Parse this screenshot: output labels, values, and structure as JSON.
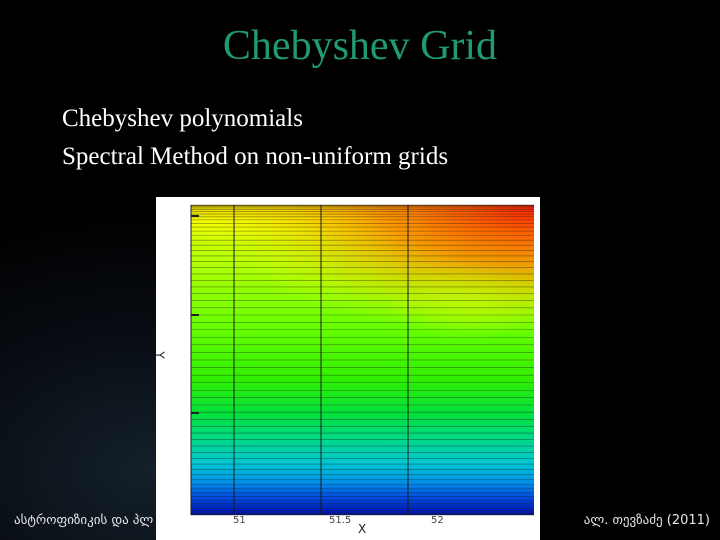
{
  "slide": {
    "title": "Chebyshev Grid",
    "bullets": [
      "Chebyshev polynomials",
      "Spectral Method on non-uniform grids"
    ]
  },
  "plot": {
    "ylabel": "Y",
    "xlabel": "X",
    "x_ticks": [
      "51",
      "51.5",
      "52"
    ]
  },
  "footer": {
    "left": "ასტროფიზიკის და პლაზმის",
    "right": "ალ. თევზაძე (2011)"
  },
  "colors": {
    "title": "#1f9a72",
    "text": "#ffffff",
    "background": "#000000"
  }
}
